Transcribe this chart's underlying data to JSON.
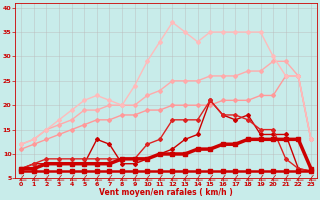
{
  "xlabel": "Vent moyen/en rafales ( km/h )",
  "xlim": [
    -0.5,
    23.5
  ],
  "ylim": [
    5,
    41
  ],
  "yticks": [
    5,
    10,
    15,
    20,
    25,
    30,
    35,
    40
  ],
  "xticks": [
    0,
    1,
    2,
    3,
    4,
    5,
    6,
    7,
    8,
    9,
    10,
    11,
    12,
    13,
    14,
    15,
    16,
    17,
    18,
    19,
    20,
    21,
    22,
    23
  ],
  "bg_color": "#c8ecea",
  "series": [
    {
      "x": [
        0,
        1,
        2,
        3,
        4,
        5,
        6,
        7,
        8,
        9,
        10,
        11,
        12,
        13,
        14,
        15,
        16,
        17,
        18,
        19,
        20,
        21,
        22,
        23
      ],
      "y": [
        6.5,
        6.5,
        6.5,
        6.5,
        6.5,
        6.5,
        6.5,
        6.5,
        6.5,
        6.5,
        6.5,
        6.5,
        6.5,
        6.5,
        6.5,
        6.5,
        6.5,
        6.5,
        6.5,
        6.5,
        6.5,
        6.5,
        6.5,
        6.5
      ],
      "color": "#cc0000",
      "linewidth": 1.8,
      "marker": "s",
      "markersize": 2.5,
      "zorder": 5
    },
    {
      "x": [
        0,
        1,
        2,
        3,
        4,
        5,
        6,
        7,
        8,
        9,
        10,
        11,
        12,
        13,
        14,
        15,
        16,
        17,
        18,
        19,
        20,
        21,
        22,
        23
      ],
      "y": [
        7,
        7,
        8,
        8,
        8,
        8,
        8,
        8,
        9,
        9,
        9,
        10,
        10,
        10,
        11,
        11,
        12,
        12,
        13,
        13,
        13,
        13,
        13,
        7
      ],
      "color": "#cc0000",
      "linewidth": 2.5,
      "marker": "s",
      "markersize": 2.5,
      "zorder": 4
    },
    {
      "x": [
        0,
        1,
        2,
        3,
        4,
        5,
        6,
        7,
        8,
        9,
        10,
        11,
        12,
        13,
        14,
        15,
        16,
        17,
        18,
        19,
        20,
        21,
        22,
        23
      ],
      "y": [
        7,
        8,
        8,
        8,
        8,
        8,
        13,
        12,
        8,
        8,
        9,
        10,
        11,
        13,
        14,
        21,
        18,
        17,
        18,
        14,
        14,
        14,
        7,
        6.5
      ],
      "color": "#cc0000",
      "linewidth": 1.0,
      "marker": "D",
      "markersize": 2.0,
      "zorder": 3
    },
    {
      "x": [
        0,
        1,
        2,
        3,
        4,
        5,
        6,
        7,
        8,
        9,
        10,
        11,
        12,
        13,
        14,
        15,
        16,
        17,
        18,
        19,
        20,
        21,
        22,
        23
      ],
      "y": [
        7,
        8,
        9,
        9,
        9,
        9,
        9,
        9,
        9,
        9,
        12,
        13,
        17,
        17,
        17,
        21,
        18,
        18,
        17,
        15,
        15,
        9,
        7,
        6.5
      ],
      "color": "#dd2222",
      "linewidth": 1.0,
      "marker": "D",
      "markersize": 2.0,
      "zorder": 3
    },
    {
      "x": [
        0,
        1,
        2,
        3,
        4,
        5,
        6,
        7,
        8,
        9,
        10,
        11,
        12,
        13,
        14,
        15,
        16,
        17,
        18,
        19,
        20,
        21,
        22,
        23
      ],
      "y": [
        11,
        12,
        13,
        14,
        15,
        16,
        17,
        17,
        18,
        18,
        19,
        19,
        20,
        20,
        20,
        20,
        21,
        21,
        21,
        22,
        22,
        26,
        26,
        13
      ],
      "color": "#ff9999",
      "linewidth": 1.0,
      "marker": "D",
      "markersize": 2.0,
      "zorder": 2
    },
    {
      "x": [
        0,
        1,
        2,
        3,
        4,
        5,
        6,
        7,
        8,
        9,
        10,
        11,
        12,
        13,
        14,
        15,
        16,
        17,
        18,
        19,
        20,
        21,
        22,
        23
      ],
      "y": [
        12,
        13,
        15,
        16,
        17,
        19,
        19,
        20,
        20,
        20,
        22,
        23,
        25,
        25,
        25,
        26,
        26,
        26,
        27,
        27,
        29,
        29,
        26,
        13
      ],
      "color": "#ffaaaa",
      "linewidth": 1.0,
      "marker": "D",
      "markersize": 2.0,
      "zorder": 2
    },
    {
      "x": [
        0,
        1,
        2,
        3,
        4,
        5,
        6,
        7,
        8,
        9,
        10,
        11,
        12,
        13,
        14,
        15,
        16,
        17,
        18,
        19,
        20,
        21,
        22,
        23
      ],
      "y": [
        12,
        13,
        15,
        17,
        19,
        21,
        22,
        21,
        20,
        24,
        29,
        33,
        37,
        35,
        33,
        35,
        35,
        35,
        35,
        35,
        30,
        26,
        26,
        13
      ],
      "color": "#ffbbbb",
      "linewidth": 1.0,
      "marker": "D",
      "markersize": 2.0,
      "zorder": 2
    }
  ]
}
